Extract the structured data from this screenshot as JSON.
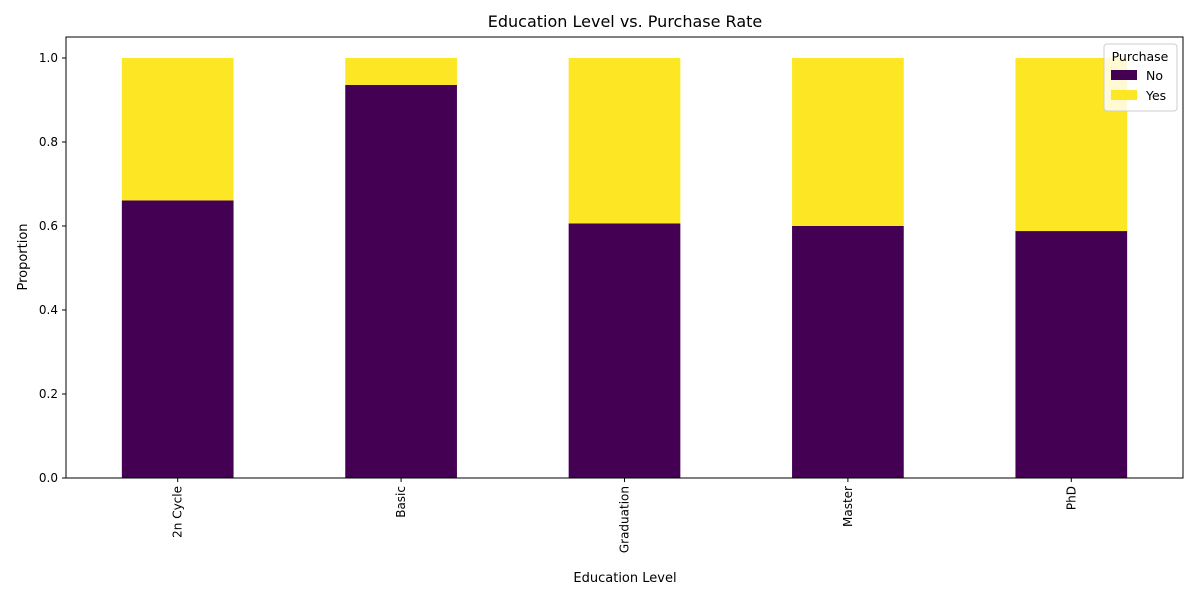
{
  "chart_data": {
    "type": "bar",
    "stacked": true,
    "title": "Education Level vs. Purchase Rate",
    "xlabel": "Education Level",
    "ylabel": "Proportion",
    "categories": [
      "2n Cycle",
      "Basic",
      "Graduation",
      "Master",
      "PhD"
    ],
    "series": [
      {
        "name": "No",
        "color": "#440154",
        "values": [
          0.661,
          0.936,
          0.606,
          0.6,
          0.588
        ]
      },
      {
        "name": "Yes",
        "color": "#fde725",
        "values": [
          0.339,
          0.064,
          0.394,
          0.4,
          0.412
        ]
      }
    ],
    "ylim": [
      0,
      1.05
    ],
    "yticks": [
      "0.0",
      "0.2",
      "0.4",
      "0.6",
      "0.8",
      "1.0"
    ],
    "legend": {
      "title": "Purchase",
      "placement": "top-right"
    },
    "grid": false
  }
}
